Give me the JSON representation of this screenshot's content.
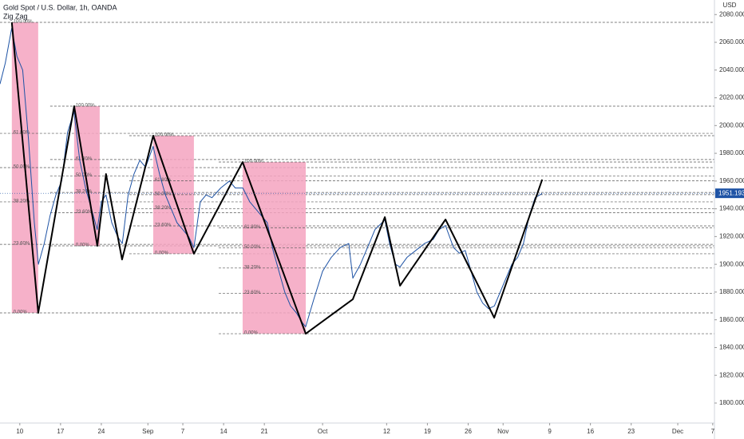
{
  "chart_data": {
    "type": "line",
    "title": "Gold Spot / U.S. Dollar, 1h, OANDA",
    "indicator": "Zig Zag",
    "currency": "USD",
    "last_price": {
      "value": 1951.193,
      "label": "1951.193"
    },
    "xlim": [
      6.6,
      129.3
    ],
    "ylim": [
      1785.6,
      2090.5
    ],
    "xticks": [
      {
        "value": 10,
        "label": "10"
      },
      {
        "value": 17,
        "label": "17"
      },
      {
        "value": 24,
        "label": "24"
      },
      {
        "value": 32,
        "label": "Sep"
      },
      {
        "value": 38,
        "label": "7"
      },
      {
        "value": 45,
        "label": "14"
      },
      {
        "value": 52,
        "label": "21"
      },
      {
        "value": 62,
        "label": "Oct"
      },
      {
        "value": 73,
        "label": "12"
      },
      {
        "value": 80,
        "label": "19"
      },
      {
        "value": 87,
        "label": "26"
      },
      {
        "value": 93,
        "label": "Nov"
      },
      {
        "value": 101,
        "label": "9"
      },
      {
        "value": 108,
        "label": "16"
      },
      {
        "value": 115,
        "label": "23"
      },
      {
        "value": 123,
        "label": "Dec"
      },
      {
        "value": 129,
        "label": "7"
      }
    ],
    "yticks": [
      {
        "value": 1800,
        "label": "1800.000"
      },
      {
        "value": 1820,
        "label": "1820.000"
      },
      {
        "value": 1840,
        "label": "1840.000"
      },
      {
        "value": 1860,
        "label": "1860.000"
      },
      {
        "value": 1880,
        "label": "1880.000"
      },
      {
        "value": 1900,
        "label": "1900.000"
      },
      {
        "value": 1920,
        "label": "1920.000"
      },
      {
        "value": 1940,
        "label": "1940.000"
      },
      {
        "value": 1960,
        "label": "1960.000"
      },
      {
        "value": 1980,
        "label": "1980.000"
      },
      {
        "value": 2000,
        "label": "2000.000"
      },
      {
        "value": 2020,
        "label": "2020.000"
      },
      {
        "value": 2040,
        "label": "2040.000"
      },
      {
        "value": 2060,
        "label": "2060.000"
      },
      {
        "value": 2080,
        "label": "2080.000"
      }
    ],
    "series": [
      {
        "name": "Price",
        "color": "#1e53a5",
        "width": 1,
        "x": [
          6.6,
          7.5,
          8.6,
          9.5,
          10.5,
          11.5,
          12.5,
          13.2,
          14.2,
          15.2,
          16.2,
          17.2,
          18.2,
          19.3,
          20.3,
          21.3,
          22.3,
          23.3,
          24.0,
          24.8,
          25.8,
          26.8,
          27.6,
          28.6,
          29.6,
          30.6,
          31.6,
          32.9,
          34.0,
          35.0,
          36.0,
          37.0,
          38.0,
          39.0,
          39.9,
          41.0,
          42.0,
          43.0,
          44.5,
          46.0,
          47.0,
          48.3,
          49.5,
          50.5,
          51.5,
          52.5,
          53.5,
          54.5,
          55.5,
          56.5,
          57.5,
          58.5,
          59.1,
          60.5,
          62,
          63.5,
          65,
          66.5,
          67.2,
          68.5,
          70,
          71,
          72.7,
          73.5,
          74.5,
          75.3,
          76.5,
          78,
          79.5,
          81,
          82,
          83.1,
          84.5,
          85.5,
          86.5,
          87.5,
          88.5,
          89.5,
          90.5,
          91.5,
          92.5,
          93.5,
          94.5,
          95.5,
          96.5,
          97.5,
          98.5,
          99.7
        ],
        "values": [
          2030,
          2045,
          2070,
          2050,
          2040,
          1990,
          1930,
          1900,
          1915,
          1935,
          1950,
          1960,
          1995,
          2010,
          1975,
          1955,
          1940,
          1925,
          1945,
          1950,
          1930,
          1920,
          1915,
          1950,
          1965,
          1975,
          1970,
          1985,
          1965,
          1950,
          1940,
          1930,
          1925,
          1920,
          1912,
          1945,
          1950,
          1948,
          1955,
          1960,
          1955,
          1955,
          1945,
          1940,
          1935,
          1930,
          1910,
          1895,
          1880,
          1870,
          1865,
          1858,
          1855,
          1875,
          1895,
          1905,
          1912,
          1915,
          1890,
          1900,
          1915,
          1925,
          1932,
          1915,
          1900,
          1898,
          1905,
          1910,
          1915,
          1918,
          1925,
          1928,
          1912,
          1908,
          1910,
          1895,
          1880,
          1872,
          1868,
          1870,
          1880,
          1890,
          1900,
          1905,
          1915,
          1935,
          1948,
          1951
        ]
      },
      {
        "name": "Zig Zag",
        "color": "#000000",
        "width": 2,
        "x": [
          8.63,
          13.16,
          19.33,
          23.31,
          24.81,
          27.56,
          32.91,
          39.9,
          48.27,
          59.11,
          67.2,
          72.69,
          75.3,
          83.11,
          91.48,
          99.71
        ],
        "values": [
          2074.4,
          1865.0,
          2014.0,
          1913.3,
          1965.1,
          1903.5,
          1992.7,
          1907.6,
          1973.7,
          1850.0,
          1874.8,
          1934.0,
          1884.6,
          1932.3,
          1861.5,
          1961.1
        ]
      }
    ],
    "fib_color": "#f5a3bf",
    "fib_boxes": [
      {
        "x": [
          8.63,
          13.16
        ],
        "levels": [
          {
            "label": "100.00%",
            "price": 2074.4
          },
          {
            "label": "61.80%",
            "price": 1994.4
          },
          {
            "label": "50.00%",
            "price": 1969.7
          },
          {
            "label": "38.20%",
            "price": 1945.0
          },
          {
            "label": "23.60%",
            "price": 1914.4
          },
          {
            "label": "0.00%",
            "price": 1865.0
          }
        ]
      },
      {
        "x": [
          19.33,
          23.72
        ],
        "levels": [
          {
            "label": "100.00%",
            "price": 2014.0
          },
          {
            "label": "61.80%",
            "price": 1975.5
          },
          {
            "label": "50.00%",
            "price": 1963.7
          },
          {
            "label": "38.20%",
            "price": 1951.8
          },
          {
            "label": "23.60%",
            "price": 1937.1
          },
          {
            "label": "0.00%",
            "price": 1913.3
          }
        ]
      },
      {
        "x": [
          32.91,
          39.9
        ],
        "levels": [
          {
            "label": "100.00%",
            "price": 1992.7
          },
          {
            "label": "61.80%",
            "price": 1960.2
          },
          {
            "label": "50.00%",
            "price": 1950.2
          },
          {
            "label": "38.20%",
            "price": 1940.1
          },
          {
            "label": "23.60%",
            "price": 1927.7
          },
          {
            "label": "0.00%",
            "price": 1907.6
          }
        ]
      },
      {
        "x": [
          48.27,
          59.11
        ],
        "levels": [
          {
            "label": "100.00%",
            "price": 1973.7
          },
          {
            "label": "61.80%",
            "price": 1926.4
          },
          {
            "label": "50.00%",
            "price": 1911.9
          },
          {
            "label": "38.20%",
            "price": 1897.3
          },
          {
            "label": "23.60%",
            "price": 1879.2
          },
          {
            "label": "0.00%",
            "price": 1850.0
          }
        ]
      }
    ]
  }
}
